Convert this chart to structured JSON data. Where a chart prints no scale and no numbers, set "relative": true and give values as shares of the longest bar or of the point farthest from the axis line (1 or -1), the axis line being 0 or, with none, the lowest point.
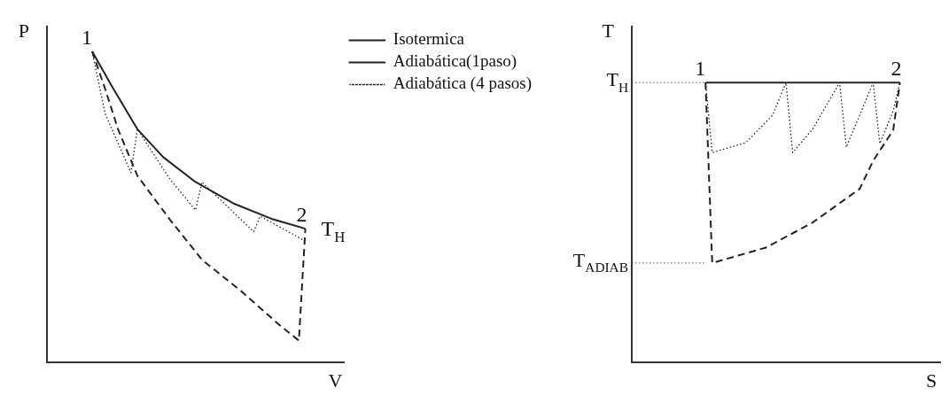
{
  "chart_data": [
    {
      "type": "line",
      "relative": true,
      "xlabel": "V",
      "ylabel": "P",
      "legend": "top right",
      "marker": "none",
      "categories": [
        null,
        null,
        null,
        null,
        null,
        null,
        null,
        null,
        null,
        null,
        null,
        null,
        null,
        null,
        null,
        null,
        null,
        null,
        null,
        null,
        null,
        null,
        null,
        null,
        null,
        null,
        null,
        null,
        null,
        null,
        null,
        null,
        null,
        null,
        null,
        null,
        null,
        null,
        null,
        null,
        null,
        null,
        null,
        null,
        null,
        null,
        null
      ],
      "series": [
        {
          "name": "Isotermica",
          "color": "#222222",
          "line_style": "solid",
          "values": [
            null,
            null,
            null,
            null,
            null,
            null,
            null,
            1,
            null,
            null,
            0.89,
            null,
            null,
            null,
            0.75,
            null,
            null,
            null,
            0.66,
            null,
            null,
            null,
            null,
            0.58,
            null,
            null,
            null,
            null,
            null,
            0.51,
            null,
            null,
            null,
            null,
            null,
            0.46,
            null,
            null,
            null,
            null,
            0.43,
            null,
            null,
            null,
            null,
            null,
            null
          ]
        },
        {
          "name": "Adiabática(1paso)",
          "color": "#222222",
          "line_style": "dashed",
          "values": [
            null,
            null,
            null,
            null,
            null,
            null,
            null,
            1,
            null,
            0.88,
            null,
            0.75,
            null,
            null,
            0.6,
            null,
            null,
            null,
            null,
            0.46,
            null,
            null,
            null,
            null,
            0.33,
            null,
            null,
            null,
            null,
            null,
            0.23,
            null,
            null,
            null,
            null,
            null,
            0.12,
            null,
            null,
            0.07,
            0.43,
            null,
            null,
            null,
            null,
            null,
            null
          ]
        },
        {
          "name": "Adiabática (4 pasos)",
          "color": "#222222",
          "line_style": "dotted",
          "values": [
            null,
            null,
            null,
            null,
            null,
            null,
            null,
            1,
            null,
            0.8,
            null,
            null,
            null,
            0.61,
            0.75,
            null,
            null,
            null,
            null,
            0.59,
            null,
            null,
            null,
            0.49,
            0.58,
            null,
            null,
            null,
            null,
            null,
            null,
            null,
            0.42,
            0.47,
            null,
            null,
            null,
            null,
            null,
            null,
            0.39,
            null,
            null,
            null,
            null,
            null,
            null
          ]
        }
      ],
      "annotations": [
        "1",
        "2",
        "T$_{H}$"
      ]
    },
    {
      "type": "line",
      "relative": true,
      "xlabel": "S",
      "ylabel": "T",
      "marker": "none",
      "categories": [
        null,
        null,
        null,
        null,
        null,
        null,
        null,
        null,
        null,
        null,
        null,
        null,
        null,
        null,
        null,
        null,
        null,
        null,
        null,
        null,
        null,
        null,
        null,
        null,
        null,
        null,
        null,
        null,
        null,
        null,
        null,
        null,
        null,
        null,
        null,
        null,
        null,
        null,
        null,
        null,
        null,
        null,
        null,
        null,
        null,
        null,
        null
      ],
      "series": [
        {
          "color": "#222222",
          "line_style": "solid",
          "values": [
            null,
            null,
            null,
            null,
            null,
            null,
            null,
            null,
            null,
            null,
            null,
            1,
            null,
            null,
            null,
            null,
            null,
            null,
            null,
            null,
            null,
            null,
            null,
            null,
            null,
            null,
            null,
            null,
            null,
            null,
            null,
            null,
            null,
            null,
            null,
            null,
            null,
            null,
            null,
            null,
            1,
            null,
            null,
            null,
            null,
            null,
            null
          ]
        },
        {
          "color": "#222222",
          "line_style": "dashed",
          "values": [
            null,
            null,
            null,
            null,
            null,
            null,
            null,
            null,
            null,
            null,
            null,
            1,
            0.355,
            null,
            null,
            null,
            null,
            null,
            null,
            null,
            0.41,
            null,
            null,
            null,
            null,
            null,
            null,
            0.5,
            null,
            null,
            null,
            null,
            null,
            null,
            0.62,
            null,
            0.72,
            null,
            null,
            0.83,
            1,
            null,
            null,
            null,
            null,
            null,
            null
          ]
        },
        {
          "color": "#222222",
          "line_style": "dotted",
          "values": [
            null,
            null,
            null,
            null,
            null,
            null,
            null,
            null,
            null,
            null,
            null,
            1,
            0.75,
            null,
            null,
            null,
            null,
            0.785,
            null,
            null,
            null,
            0.883,
            null,
            1,
            0.75,
            null,
            null,
            0.834,
            null,
            null,
            null,
            1,
            0.769,
            null,
            0.883,
            null,
            1,
            0.782,
            null,
            0.899,
            1,
            null,
            null,
            null,
            null,
            null,
            null
          ]
        }
      ],
      "ref_lines": [
        {
          "axis": "y",
          "value": 1,
          "label": "T$_{H}$",
          "line_style": "dotted"
        },
        {
          "axis": "y",
          "value": 0.355,
          "label": "T$_{ADIAB}$",
          "line_style": "dotted"
        }
      ],
      "annotations": [
        "1",
        "2"
      ]
    }
  ]
}
